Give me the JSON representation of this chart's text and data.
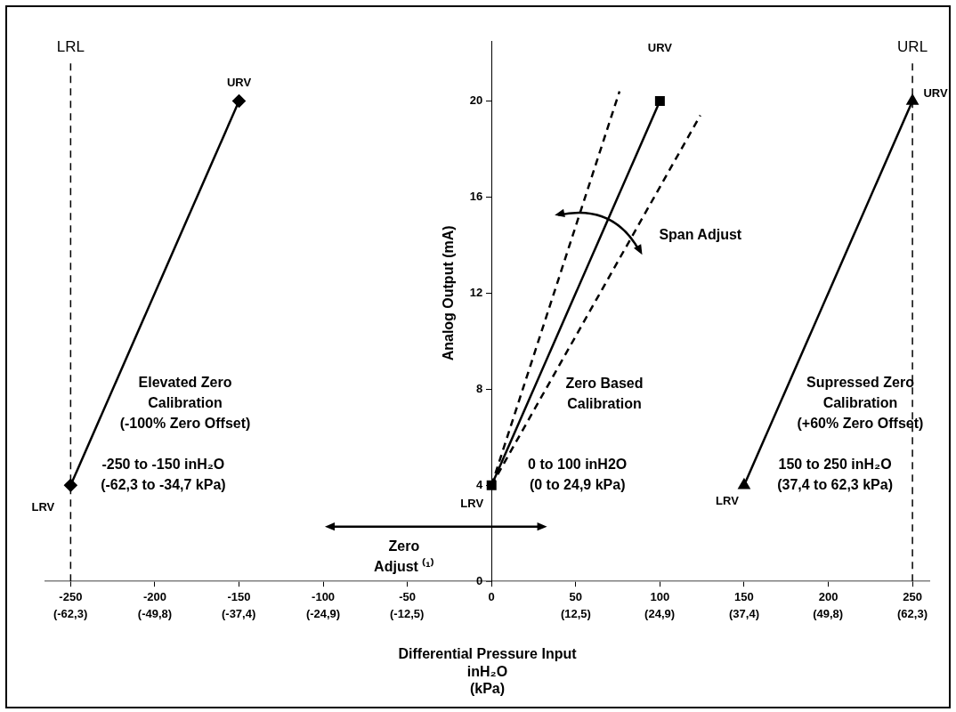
{
  "chart_data": {
    "type": "line",
    "xlabel": "Differential Pressure Input\ninH₂O\n(kPa)",
    "ylabel": "Analog Output (mA)",
    "xlim": [
      -265,
      260
    ],
    "xticks": [
      -250,
      -200,
      -150,
      -100,
      -50,
      0,
      50,
      100,
      150,
      200,
      250
    ],
    "x2lim": [
      -66,
      64.8
    ],
    "x2ticks": [
      {
        "value": -62.3,
        "label": "(-62,3)"
      },
      {
        "value": -49.8,
        "label": "(-49,8)"
      },
      {
        "value": -37.4,
        "label": "(-37,4)"
      },
      {
        "value": -24.9,
        "label": "(-24,9)"
      },
      {
        "value": -12.5,
        "label": "(-12,5)"
      },
      {
        "value": 12.5,
        "label": "(12,5)"
      },
      {
        "value": 24.9,
        "label": "(24,9)"
      },
      {
        "value": 37.4,
        "label": "(37,4)"
      },
      {
        "value": 49.8,
        "label": "(49,8)"
      },
      {
        "value": 62.3,
        "label": "(62,3)"
      }
    ],
    "ylim": [
      0,
      22.5
    ],
    "yticks": [
      0,
      4,
      8,
      12,
      16,
      20
    ],
    "grid": false,
    "legend": false,
    "line_style": "solid",
    "series": [
      {
        "color": "#000000",
        "marker": "diamond",
        "x": [
          -250,
          -150
        ],
        "values": [
          4,
          20
        ]
      },
      {
        "color": "#000000",
        "marker": "square",
        "x": [
          0,
          100
        ],
        "values": [
          4,
          20
        ]
      },
      {
        "color": "#000000",
        "marker": "triangle",
        "x": [
          150,
          250
        ],
        "values": [
          4,
          20
        ]
      },
      {
        "color": "#000000",
        "marker": "none",
        "line_style": "dashed",
        "x": [
          0,
          76
        ],
        "values": [
          4,
          20.4
        ]
      },
      {
        "color": "#000000",
        "marker": "none",
        "line_style": "dashed",
        "x": [
          0,
          124
        ],
        "values": [
          4,
          19.4
        ]
      }
    ],
    "ref_lines": [
      {
        "axis": "x",
        "value": -250,
        "label": "LRL",
        "line_style": "dashed",
        "color": "#000000"
      },
      {
        "axis": "x",
        "value": 250,
        "label": "URL",
        "line_style": "dashed",
        "color": "#000000"
      }
    ],
    "annotations": [
      {
        "text": "URV",
        "x": -150,
        "y": 20
      },
      {
        "text": "LRV",
        "x": -250,
        "y": 4
      },
      "URV",
      {
        "text": "LRV",
        "x": 0,
        "y": 4
      },
      {
        "text": "URV",
        "x": 250,
        "y": 20
      },
      {
        "text": "LRV",
        "x": 150,
        "y": 4
      },
      "Elevated Zero\nCalibration\n(-100% Zero Offset)",
      "-250 to -150 inH₂O\n(-62,3 to -34,7 kPa)",
      "Zero Based\nCalibration",
      "0 to 100 inH2O\n(0 to 24,9 kPa)",
      "Supressed Zero\nCalibration\n(+60% Zero Offset)",
      "150 to 250 inH₂O\n(37,4 to 62,3 kPa)",
      "Span Adjust",
      "Zero\nAdjust ⁽¹⁾"
    ]
  }
}
